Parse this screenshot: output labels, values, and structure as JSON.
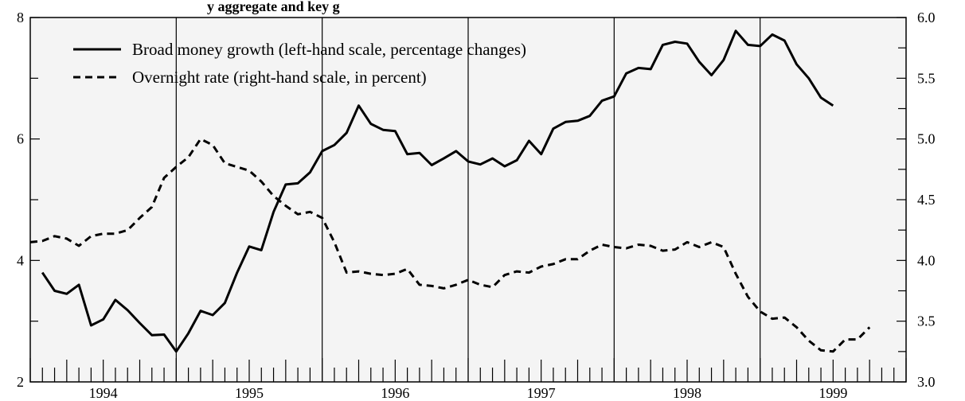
{
  "partial_title": "y aggregate and key g",
  "chart_data": {
    "type": "line",
    "title": "",
    "xlabel": "",
    "left_ylabel": "",
    "right_ylabel": "",
    "left_ylim": [
      2,
      8
    ],
    "right_ylim": [
      3.0,
      6.0
    ],
    "left_ticks": [
      "2",
      "4",
      "6",
      "8"
    ],
    "left_minor_ticks": [
      3,
      5,
      7
    ],
    "right_ticks": [
      "3.0",
      "3.5",
      "4.0",
      "4.5",
      "5.0",
      "5.5",
      "6.0"
    ],
    "right_minor_ticks": [
      3.25,
      3.75,
      4.25,
      4.75,
      5.25,
      5.75
    ],
    "year_labels": [
      "1994",
      "1995",
      "1996",
      "1997",
      "1998",
      "1999"
    ],
    "x_range": [
      1993.5,
      1999.5
    ],
    "grid": false,
    "background_color": "#f4f4f4",
    "vertical_lines": [
      1994.5,
      1995.5,
      1996.5,
      1997.5,
      1998.5
    ],
    "legend_position": "top-left",
    "series": [
      {
        "name": "Broad money growth (left-hand scale, percentage changes)",
        "axis": "left",
        "style": "solid",
        "x": [
          1993.583,
          1993.667,
          1993.75,
          1993.833,
          1993.917,
          1994.0,
          1994.083,
          1994.167,
          1994.25,
          1994.333,
          1994.417,
          1994.5,
          1994.583,
          1994.667,
          1994.75,
          1994.833,
          1994.917,
          1995.0,
          1995.083,
          1995.167,
          1995.25,
          1995.333,
          1995.417,
          1995.5,
          1995.583,
          1995.667,
          1995.75,
          1995.833,
          1995.917,
          1996.0,
          1996.083,
          1996.167,
          1996.25,
          1996.333,
          1996.417,
          1996.5,
          1996.583,
          1996.667,
          1996.75,
          1996.833,
          1996.917,
          1997.0,
          1997.083,
          1997.167,
          1997.25,
          1997.333,
          1997.417,
          1997.5,
          1997.583,
          1997.667,
          1997.75,
          1997.833,
          1997.917,
          1998.0,
          1998.083,
          1998.167,
          1998.25,
          1998.333,
          1998.417,
          1998.5,
          1998.583,
          1998.667,
          1998.75,
          1998.833,
          1998.917,
          1999.0
        ],
        "values": [
          3.8,
          3.5,
          3.45,
          3.6,
          2.93,
          3.03,
          3.35,
          3.18,
          2.97,
          2.77,
          2.78,
          2.5,
          2.8,
          3.17,
          3.1,
          3.3,
          3.8,
          4.23,
          4.17,
          4.8,
          5.25,
          5.27,
          5.45,
          5.8,
          5.9,
          6.1,
          6.55,
          6.25,
          6.15,
          6.13,
          5.75,
          5.77,
          5.57,
          5.68,
          5.8,
          5.63,
          5.58,
          5.68,
          5.55,
          5.65,
          5.97,
          5.75,
          6.17,
          6.28,
          6.3,
          6.38,
          6.63,
          6.7,
          7.08,
          7.17,
          7.15,
          7.55,
          7.6,
          7.57,
          7.27,
          7.05,
          7.3,
          7.78,
          7.55,
          7.53,
          7.72,
          7.62,
          7.23,
          7.0,
          6.68,
          6.55
        ]
      },
      {
        "name": "Overnight rate (right-hand scale, in percent)",
        "axis": "right",
        "style": "dashed",
        "x": [
          1993.5,
          1993.583,
          1993.667,
          1993.75,
          1993.833,
          1993.917,
          1994.0,
          1994.083,
          1994.167,
          1994.25,
          1994.333,
          1994.417,
          1994.5,
          1994.583,
          1994.667,
          1994.75,
          1994.833,
          1994.917,
          1995.0,
          1995.083,
          1995.167,
          1995.25,
          1995.333,
          1995.417,
          1995.5,
          1995.583,
          1995.667,
          1995.75,
          1995.833,
          1995.917,
          1996.0,
          1996.083,
          1996.167,
          1996.25,
          1996.333,
          1996.417,
          1996.5,
          1996.583,
          1996.667,
          1996.75,
          1996.833,
          1996.917,
          1997.0,
          1997.083,
          1997.167,
          1997.25,
          1997.333,
          1997.417,
          1997.5,
          1997.583,
          1997.667,
          1997.75,
          1997.833,
          1997.917,
          1998.0,
          1998.083,
          1998.167,
          1998.25,
          1998.333,
          1998.417,
          1998.5,
          1998.583,
          1998.667,
          1998.75,
          1998.833,
          1998.917,
          1999.0,
          1999.083,
          1999.167,
          1999.25
        ],
        "values": [
          4.15,
          4.16,
          4.2,
          4.18,
          4.12,
          4.2,
          4.22,
          4.22,
          4.25,
          4.35,
          4.44,
          4.68,
          4.77,
          4.85,
          5.0,
          4.95,
          4.8,
          4.77,
          4.74,
          4.65,
          4.53,
          4.45,
          4.38,
          4.4,
          4.35,
          4.15,
          3.9,
          3.91,
          3.89,
          3.88,
          3.89,
          3.93,
          3.8,
          3.79,
          3.77,
          3.8,
          3.84,
          3.8,
          3.78,
          3.88,
          3.91,
          3.9,
          3.95,
          3.97,
          4.01,
          4.01,
          4.08,
          4.13,
          4.11,
          4.1,
          4.13,
          4.12,
          4.08,
          4.09,
          4.15,
          4.11,
          4.15,
          4.11,
          3.89,
          3.7,
          3.58,
          3.52,
          3.53,
          3.45,
          3.34,
          3.26,
          3.25,
          3.35,
          3.35,
          3.45
        ]
      }
    ]
  }
}
